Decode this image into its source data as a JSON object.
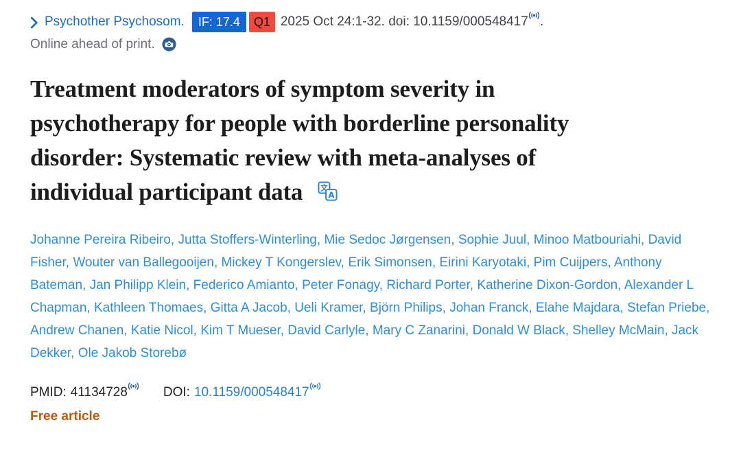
{
  "journal_bar": {
    "journal_name": "Psychother Psychosom.",
    "impact_factor_badge": "IF: 17.4",
    "quartile_badge": "Q1",
    "citation_text": "2025 Oct 24:1-32. doi: 10.1159/000548417",
    "trailing_period": ".",
    "online_status": "Online ahead of print."
  },
  "article": {
    "title_full": "Treatment moderators of symptom severity in psychotherapy for people with borderline personality disorder: Systematic review with meta-analyses of individual participant data",
    "title_lines": [
      "Treatment moderators of symptom severity in",
      "psychotherapy for people with borderline personality",
      "disorder: Systematic review with meta-analyses of",
      "individual participant data"
    ]
  },
  "authors": [
    "Johanne Pereira Ribeiro",
    "Jutta Stoffers-Winterling",
    "Mie Sedoc Jørgensen",
    "Sophie Juul",
    "Minoo Matbouriahi",
    "David Fisher",
    "Wouter van Ballegooijen",
    "Mickey T Kongerslev",
    "Erik Simonsen",
    "Eirini Karyotaki",
    "Pim Cuijpers",
    "Anthony Bateman",
    "Jan Philipp Klein",
    "Federico Amianto",
    "Peter Fonagy",
    "Richard Porter",
    "Katherine Dixon-Gordon",
    "Alexander L Chapman",
    "Kathleen Thomaes",
    "Gitta A Jacob",
    "Ueli Kramer",
    "Björn Philips",
    "Johan Franck",
    "Elahe Majdara",
    "Stefan Priebe",
    "Andrew Chanen",
    "Katie Nicol",
    "Kim T Mueser",
    "David Carlyle",
    "Mary C Zanarini",
    "Donald W Black",
    "Shelley McMain",
    "Jack Dekker",
    "Ole Jakob Storebø"
  ],
  "identifiers": {
    "pmid_label": "PMID:",
    "pmid_value": "41134728",
    "doi_label": "DOI:",
    "doi_value": "10.1159/000548417"
  },
  "free_article_label": "Free article",
  "icons": {
    "chevron-right-icon": "❯",
    "signal-icon": "((•))",
    "camera-icon": "📷",
    "translate-icon": "文/A"
  },
  "colors": {
    "link-blue": "#1d6fbe",
    "author-blue": "#2e8ed8",
    "doi-blue": "#2b7fc9",
    "text-dark": "#212529",
    "text-gray": "#6a6f75",
    "citation-gray": "#3f4348",
    "badge-if-bg": "#1467d2",
    "badge-q1-bg": "#f4483c",
    "badge-q1-text": "#151515",
    "icon-navy": "#2d5f93",
    "free-article-orange": "#c05a10"
  }
}
